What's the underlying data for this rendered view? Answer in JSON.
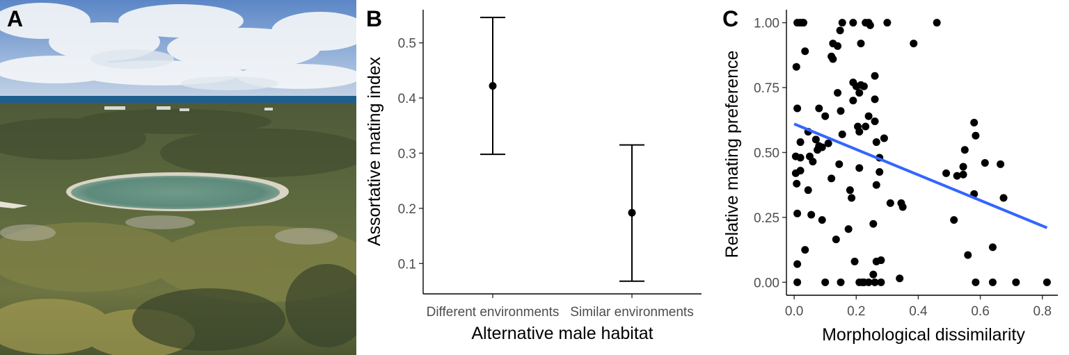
{
  "panels": {
    "photo": {
      "letter": "A"
    },
    "b": {
      "letter": "B"
    },
    "c": {
      "letter": "C"
    }
  },
  "chart_data": [
    {
      "type": "errorbar",
      "panel": "B",
      "categories": [
        "Different environments",
        "Similar environments"
      ],
      "values": [
        0.422,
        0.192
      ],
      "lower": [
        0.298,
        0.068
      ],
      "upper": [
        0.546,
        0.315
      ],
      "xlabel": "Alternative male habitat",
      "ylabel": "Assortative mating index",
      "yticks": [
        0.1,
        0.2,
        0.3,
        0.4,
        0.5
      ],
      "ytick_labels": [
        "0.1",
        "0.2",
        "0.3",
        "0.4",
        "0.5"
      ],
      "ylim": [
        0.045,
        0.56
      ],
      "grid": false
    },
    {
      "type": "scatter",
      "panel": "C",
      "xlabel": "Morphological dissimilarity",
      "ylabel": "Relative mating preference",
      "xlim": [
        -0.025,
        0.85
      ],
      "ylim": [
        -0.05,
        1.05
      ],
      "xticks": [
        0.0,
        0.2,
        0.4,
        0.6,
        0.8
      ],
      "xtick_labels": [
        "0.0",
        "0.2",
        "0.4",
        "0.6",
        "0.8"
      ],
      "yticks": [
        0.0,
        0.25,
        0.5,
        0.75,
        1.0
      ],
      "ytick_labels": [
        "0.00",
        "0.25",
        "0.50",
        "0.75",
        "1.00"
      ],
      "grid": false,
      "trend": {
        "x": [
          0.0,
          0.815
        ],
        "y": [
          0.61,
          0.21
        ],
        "color": "#3366ff"
      },
      "points": [
        [
          0.01,
          1.0
        ],
        [
          0.018,
          1.0
        ],
        [
          0.025,
          1.0
        ],
        [
          0.03,
          1.0
        ],
        [
          0.148,
          0.97
        ],
        [
          0.155,
          1.0
        ],
        [
          0.19,
          1.0
        ],
        [
          0.23,
          1.0
        ],
        [
          0.245,
          0.99
        ],
        [
          0.24,
          1.0
        ],
        [
          0.3,
          1.0
        ],
        [
          0.46,
          1.0
        ],
        [
          0.385,
          0.92
        ],
        [
          0.125,
          0.92
        ],
        [
          0.215,
          0.92
        ],
        [
          0.035,
          0.89
        ],
        [
          0.14,
          0.91
        ],
        [
          0.12,
          0.87
        ],
        [
          0.125,
          0.86
        ],
        [
          0.007,
          0.83
        ],
        [
          0.26,
          0.795
        ],
        [
          0.19,
          0.77
        ],
        [
          0.215,
          0.76
        ],
        [
          0.2,
          0.755
        ],
        [
          0.225,
          0.755
        ],
        [
          0.21,
          0.73
        ],
        [
          0.14,
          0.73
        ],
        [
          0.26,
          0.705
        ],
        [
          0.19,
          0.7
        ],
        [
          0.08,
          0.67
        ],
        [
          0.01,
          0.67
        ],
        [
          0.15,
          0.66
        ],
        [
          0.24,
          0.64
        ],
        [
          0.1,
          0.64
        ],
        [
          0.26,
          0.62
        ],
        [
          0.23,
          0.6
        ],
        [
          0.205,
          0.6
        ],
        [
          0.21,
          0.58
        ],
        [
          0.045,
          0.58
        ],
        [
          0.155,
          0.57
        ],
        [
          0.29,
          0.555
        ],
        [
          0.07,
          0.55
        ],
        [
          0.265,
          0.54
        ],
        [
          0.11,
          0.535
        ],
        [
          0.02,
          0.54
        ],
        [
          0.08,
          0.525
        ],
        [
          0.09,
          0.52
        ],
        [
          0.075,
          0.51
        ],
        [
          0.05,
          0.485
        ],
        [
          0.005,
          0.485
        ],
        [
          0.02,
          0.48
        ],
        [
          0.275,
          0.48
        ],
        [
          0.06,
          0.465
        ],
        [
          0.145,
          0.455
        ],
        [
          0.21,
          0.44
        ],
        [
          0.02,
          0.43
        ],
        [
          0.275,
          0.425
        ],
        [
          0.005,
          0.42
        ],
        [
          0.12,
          0.4
        ],
        [
          0.008,
          0.38
        ],
        [
          0.265,
          0.375
        ],
        [
          0.045,
          0.355
        ],
        [
          0.18,
          0.355
        ],
        [
          0.185,
          0.325
        ],
        [
          0.31,
          0.305
        ],
        [
          0.345,
          0.305
        ],
        [
          0.35,
          0.29
        ],
        [
          0.01,
          0.265
        ],
        [
          0.055,
          0.26
        ],
        [
          0.09,
          0.24
        ],
        [
          0.255,
          0.225
        ],
        [
          0.175,
          0.205
        ],
        [
          0.135,
          0.165
        ],
        [
          0.035,
          0.125
        ],
        [
          0.265,
          0.08
        ],
        [
          0.195,
          0.08
        ],
        [
          0.28,
          0.085
        ],
        [
          0.01,
          0.07
        ],
        [
          0.255,
          0.03
        ],
        [
          0.26,
          0.0
        ],
        [
          0.34,
          0.015
        ],
        [
          0.01,
          0.0
        ],
        [
          0.1,
          0.0
        ],
        [
          0.15,
          0.0
        ],
        [
          0.21,
          0.0
        ],
        [
          0.22,
          0.0
        ],
        [
          0.225,
          0.0
        ],
        [
          0.24,
          0.0
        ],
        [
          0.28,
          0.0
        ],
        [
          0.58,
          0.615
        ],
        [
          0.585,
          0.565
        ],
        [
          0.615,
          0.46
        ],
        [
          0.665,
          0.455
        ],
        [
          0.545,
          0.445
        ],
        [
          0.55,
          0.51
        ],
        [
          0.49,
          0.42
        ],
        [
          0.525,
          0.41
        ],
        [
          0.545,
          0.415
        ],
        [
          0.58,
          0.34
        ],
        [
          0.675,
          0.325
        ],
        [
          0.515,
          0.24
        ],
        [
          0.64,
          0.135
        ],
        [
          0.56,
          0.105
        ],
        [
          0.585,
          0.0
        ],
        [
          0.64,
          0.0
        ],
        [
          0.715,
          0.0
        ],
        [
          0.815,
          0.0
        ]
      ]
    }
  ]
}
